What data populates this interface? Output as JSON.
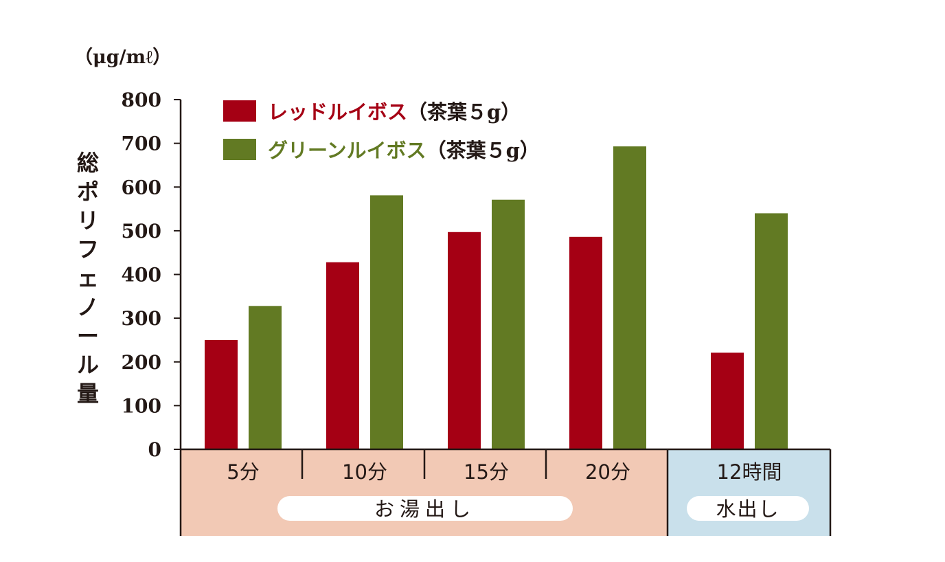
{
  "chart_data": {
    "type": "bar",
    "unit_label": "（μg/mℓ）",
    "ylabel": "総ポリフェノール量",
    "ylim": [
      0,
      800
    ],
    "yticks": [
      "800",
      "700",
      "600",
      "500",
      "400",
      "300",
      "200",
      "100",
      "0"
    ],
    "categories": [
      "5分",
      "10分",
      "15分",
      "20分",
      "12時間"
    ],
    "groups": [
      {
        "label": "お湯出し",
        "color": "#f2c9b5"
      },
      {
        "label": "水出し",
        "color": "#c9e0eb"
      }
    ],
    "series": [
      {
        "name": "レッドルイボス",
        "suffix": "（茶葉５g）",
        "color": "#a50014",
        "values": [
          250,
          428,
          497,
          486,
          221
        ]
      },
      {
        "name": "グリーンルイボス",
        "suffix": "（茶葉５g）",
        "color": "#627a23",
        "values": [
          328,
          581,
          571,
          693,
          540
        ]
      }
    ],
    "legend_position": "top-left"
  }
}
